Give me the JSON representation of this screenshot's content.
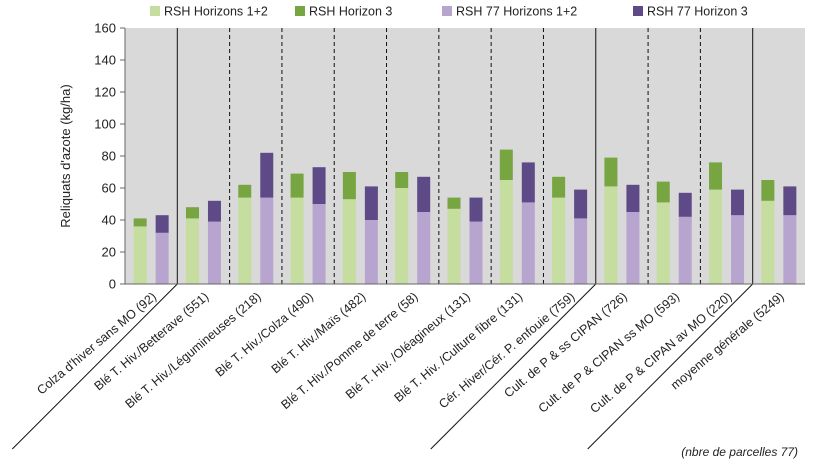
{
  "chart_data": {
    "type": "bar",
    "stacked": true,
    "ylabel": "Reliquats d'azote (kg/ha)",
    "ylim": [
      0,
      160
    ],
    "yticks": [
      0,
      20,
      40,
      60,
      80,
      100,
      120,
      140,
      160
    ],
    "grid": false,
    "legend_position": "top",
    "footnote": "(nbre de parcelles 77)",
    "categories": [
      "Colza d'hiver sans MO (92)",
      "Blé T. Hiv./Betterave (551)",
      "Blé T. Hiv./Légumineuses (218)",
      "Blé T. Hiv./Colza (490)",
      "Blé T. Hiv./Maïs (482)",
      "Blé T. Hiv./Pomme de terre (58)",
      "Blé T. Hiv. /Oléagineux (131)",
      "Blé T. Hiv. /Culture fibre (131)",
      "Cér. Hiver/Cér. P. enfouie (759)",
      "Cult. de P & ss CIPAN (726)",
      "Cult. de P & CIPAN ss MO (593)",
      "Cult. de P & CIPAN av MO (220)",
      "moyenne générale (5249)"
    ],
    "series": [
      {
        "name": "RSH Horizons 1+2",
        "color": "#c5dd9e",
        "bar": "left",
        "values": [
          36,
          41,
          54,
          54,
          53,
          60,
          47,
          65,
          54,
          61,
          51,
          59,
          52
        ]
      },
      {
        "name": "RSH Horizon 3",
        "color": "#77a541",
        "bar": "left",
        "values": [
          5,
          7,
          8,
          15,
          17,
          10,
          7,
          19,
          13,
          18,
          13,
          17,
          13
        ]
      },
      {
        "name": "RSH 77 Horizons 1+2",
        "color": "#b8a5cf",
        "bar": "right",
        "values": [
          32,
          39,
          54,
          50,
          40,
          45,
          39,
          51,
          41,
          45,
          42,
          43,
          43
        ]
      },
      {
        "name": "RSH 77 Horizon 3",
        "color": "#5e4a87",
        "bar": "right",
        "values": [
          11,
          13,
          28,
          23,
          21,
          22,
          15,
          25,
          18,
          17,
          15,
          16,
          18
        ]
      }
    ],
    "separators": [
      "solid",
      "dashed",
      "dashed",
      "dashed",
      "dashed",
      "dashed",
      "dashed",
      "dashed",
      "solid",
      "dashed",
      "dashed",
      "solid"
    ]
  }
}
